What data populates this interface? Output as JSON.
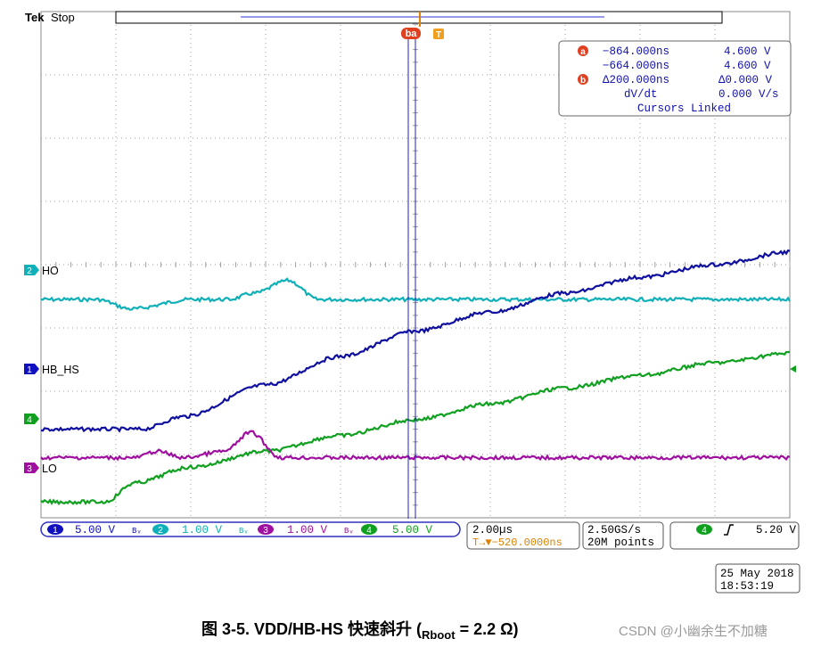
{
  "header": {
    "brand": "Tek",
    "status": "Stop"
  },
  "channels": {
    "ch1": {
      "label": "HB_HS",
      "number": "1",
      "color": "#1010a0",
      "scale": "5.00 V"
    },
    "ch2": {
      "label": "HO",
      "number": "2",
      "color": "#10b0b8",
      "scale": "1.00 V"
    },
    "ch3": {
      "label": "LO",
      "number": "3",
      "color": "#a010a0",
      "scale": "1.00 V"
    },
    "ch4": {
      "number": "4",
      "color": "#10a020",
      "scale": "5.00 V"
    },
    "bw_symbol": "Bᵥ"
  },
  "cursors": {
    "a_label": "a",
    "b_label": "b",
    "marker": "ba",
    "trigger_marker": "T",
    "a_time": "−864.000ns",
    "a_volt": "4.600 V",
    "b_time": "−664.000ns",
    "b_volt": "4.600 V",
    "delta_time": "Δ200.000ns",
    "delta_volt": "Δ0.000 V",
    "dvdt_label": "dV/dt",
    "dvdt_value": "0.000 V/s",
    "linked": "Cursors Linked"
  },
  "timebase": {
    "scale": "2.00µs",
    "position": "T→▼−520.0000ns",
    "sample_rate": "2.50GS/s",
    "record": "20M points"
  },
  "trigger": {
    "source": "4",
    "edge": "rising-edge-icon",
    "level": "5.20 V"
  },
  "datetime": {
    "date": "25 May 2018",
    "time": "18:53:19"
  },
  "caption": {
    "prefix": "图 3-5. VDD/HB-HS 快速斜升 (",
    "sub": "Rboot",
    "suffix": " = 2.2 Ω)"
  },
  "watermark": "CSDN @小幽余生不加糖",
  "chart_data": {
    "type": "line",
    "xlabel": "",
    "ylabel": "",
    "x_unit": "µs",
    "xlim": [
      -10,
      10
    ],
    "divisions_x": 10,
    "divisions_y": 8,
    "grid": true,
    "series": [
      {
        "name": "HO",
        "channel": 2,
        "x": [
          -10,
          -8.5,
          -7.6,
          -6,
          -5,
          -4.3,
          -3.4,
          -2.6,
          -2,
          0,
          4,
          10
        ],
        "y_div": [
          3.45,
          3.45,
          3.3,
          3.45,
          3.45,
          3.55,
          3.75,
          3.45,
          3.45,
          3.45,
          3.45,
          3.45
        ]
      },
      {
        "name": "HB_HS",
        "channel": 1,
        "x": [
          -10,
          -7.3,
          -6.2,
          -4,
          -2,
          0,
          2,
          4,
          6,
          8,
          10
        ],
        "y_div": [
          1.4,
          1.4,
          1.6,
          2.1,
          2.55,
          2.95,
          3.25,
          3.55,
          3.8,
          4.0,
          4.2
        ]
      },
      {
        "name": "",
        "channel": 4,
        "x": [
          -10,
          -8.3,
          -7.5,
          -6,
          -4,
          -2,
          0,
          2,
          4,
          6,
          8,
          10
        ],
        "y_div": [
          0.25,
          0.25,
          0.55,
          0.8,
          1.05,
          1.3,
          1.55,
          1.8,
          2.05,
          2.25,
          2.45,
          2.6
        ]
      },
      {
        "name": "LO",
        "channel": 3,
        "x": [
          -10,
          -7.5,
          -6.9,
          -6.2,
          -5.1,
          -4.4,
          -3.6,
          -3,
          0,
          10
        ],
        "y_div": [
          0.95,
          0.95,
          1.05,
          0.95,
          1.05,
          1.35,
          0.95,
          0.95,
          0.95,
          0.95
        ]
      }
    ]
  }
}
